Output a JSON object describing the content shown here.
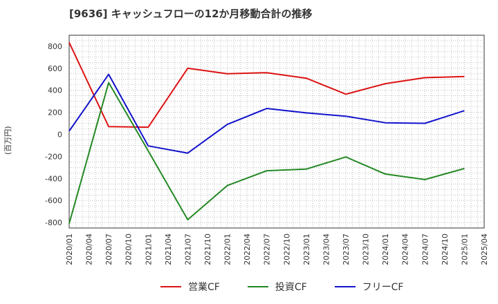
{
  "title": "[9636]  キャッシュフローの12か月移動合計の推移",
  "ylabel": "(百万円)",
  "chart_data": {
    "type": "line",
    "xlabel": "",
    "ylabel": "(百万円)",
    "ylim": [
      -850,
      900
    ],
    "yticks": [
      800,
      600,
      400,
      200,
      0,
      -200,
      -400,
      -600,
      -800
    ],
    "categories": [
      "2020/01",
      "2020/04",
      "2020/07",
      "2020/10",
      "2021/01",
      "2021/04",
      "2021/07",
      "2021/10",
      "2022/01",
      "2022/04",
      "2022/07",
      "2022/10",
      "2023/01",
      "2023/04",
      "2023/07",
      "2023/10",
      "2024/01",
      "2024/04",
      "2024/07",
      "2024/10",
      "2025/01",
      "2025/04"
    ],
    "series": [
      {
        "name": "営業CF",
        "color": "#dd1111",
        "x": [
          "2020/01",
          "2020/07",
          "2021/01",
          "2021/07",
          "2022/01",
          "2022/07",
          "2023/01",
          "2023/07",
          "2024/01",
          "2024/07",
          "2025/01"
        ],
        "values": [
          835,
          70,
          65,
          600,
          550,
          560,
          510,
          365,
          460,
          515,
          525
        ]
      },
      {
        "name": "投資CF",
        "color": "#228822",
        "x": [
          "2020/01",
          "2020/07",
          "2021/01",
          "2021/07",
          "2022/01",
          "2022/07",
          "2023/01",
          "2023/07",
          "2024/01",
          "2024/07",
          "2025/01"
        ],
        "values": [
          -810,
          470,
          -150,
          -775,
          -465,
          -330,
          -315,
          -205,
          -360,
          -410,
          -310
        ]
      },
      {
        "name": "フリーCF",
        "color": "#1111cc",
        "x": [
          "2020/01",
          "2020/07",
          "2021/01",
          "2021/07",
          "2022/01",
          "2022/07",
          "2023/01",
          "2023/07",
          "2024/01",
          "2024/07",
          "2025/01"
        ],
        "values": [
          30,
          545,
          -105,
          -170,
          90,
          235,
          195,
          165,
          105,
          100,
          215
        ]
      }
    ]
  }
}
